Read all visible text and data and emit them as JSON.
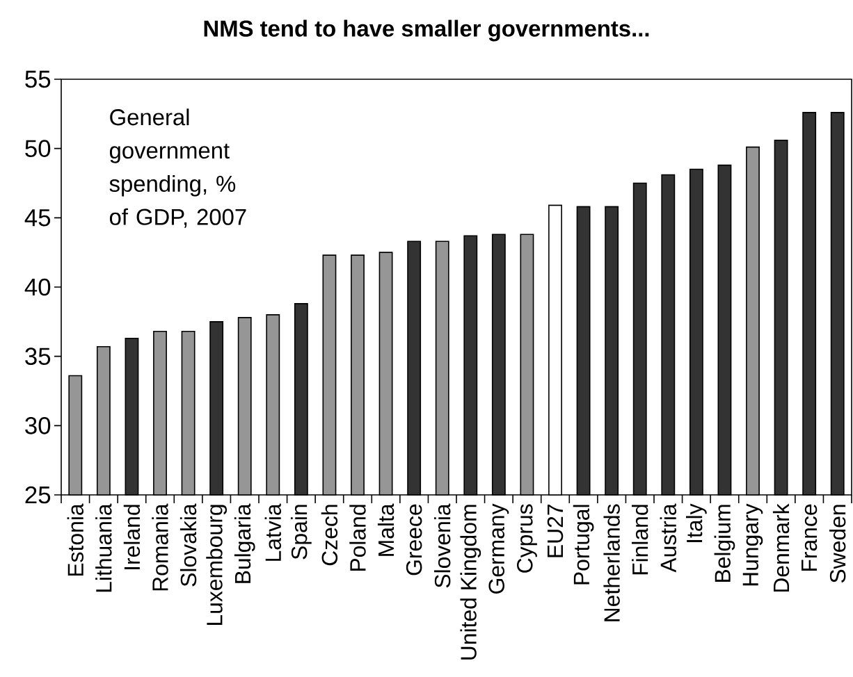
{
  "chart_data": {
    "type": "bar",
    "title": "NMS tend to have smaller governments...",
    "annotations": [
      "General government spending, % of GDP, 2007"
    ],
    "categories": [
      "Estonia",
      "Lithuania",
      "Ireland",
      "Romania",
      "Slovakia",
      "Luxembourg",
      "Bulgaria",
      "Latvia",
      "Spain",
      "Czech",
      "Poland",
      "Malta",
      "Greece",
      "Slovenia",
      "United Kingdom",
      "Germany",
      "Cyprus",
      "EU27",
      "Portugal",
      "Netherlands",
      "Finland",
      "Austria",
      "Italy",
      "Belgium",
      "Hungary",
      "Denmark",
      "France",
      "Sweden"
    ],
    "values": [
      33.6,
      35.7,
      36.3,
      36.8,
      36.8,
      37.5,
      37.8,
      38.0,
      38.8,
      42.3,
      42.3,
      42.5,
      43.3,
      43.3,
      43.7,
      43.8,
      43.8,
      45.9,
      45.8,
      45.8,
      47.5,
      48.1,
      48.5,
      48.8,
      50.1,
      50.6,
      52.6,
      52.6
    ],
    "colors": [
      "#969696",
      "#969696",
      "#333333",
      "#969696",
      "#969696",
      "#333333",
      "#969696",
      "#969696",
      "#333333",
      "#969696",
      "#969696",
      "#969696",
      "#333333",
      "#969696",
      "#333333",
      "#333333",
      "#969696",
      "#ffffff",
      "#333333",
      "#333333",
      "#333333",
      "#333333",
      "#333333",
      "#333333",
      "#969696",
      "#333333",
      "#333333",
      "#333333"
    ],
    "ylim": [
      25,
      55
    ],
    "yticks": [
      25,
      30,
      35,
      40,
      45,
      50,
      55
    ]
  }
}
